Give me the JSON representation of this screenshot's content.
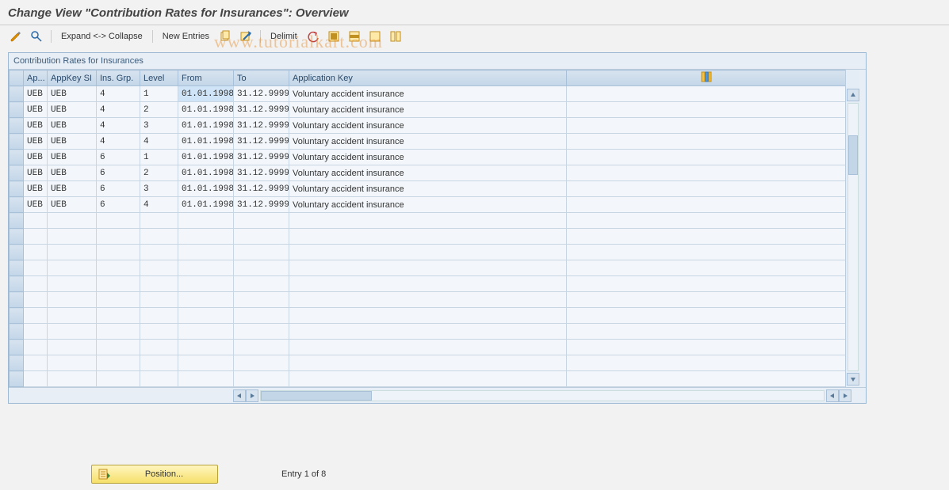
{
  "title": "Change View \"Contribution Rates for Insurances\": Overview",
  "watermark": "www.tutorialkart.com",
  "toolbar": {
    "expand_collapse": "Expand <-> Collapse",
    "new_entries": "New Entries",
    "delimit": "Delimit"
  },
  "frame_caption": "Contribution Rates for Insurances",
  "columns": {
    "ap": "Ap...",
    "appkey": "AppKey SI",
    "insgrp": "Ins. Grp.",
    "level": "Level",
    "from": "From",
    "to": "To",
    "application_key": "Application Key"
  },
  "column_widths": {
    "rowsel": 18,
    "ap": 30,
    "appkey": 62,
    "insgrp": 55,
    "level": 48,
    "from": 70,
    "to": 70,
    "application_key": 350,
    "tail": 352
  },
  "rows": [
    {
      "ap": "UEB",
      "appkey": "UEB",
      "insgrp": "4",
      "level": "1",
      "from": "01.01.1998",
      "to": "31.12.9999",
      "application_key": "Voluntary accident insurance",
      "from_selected": true
    },
    {
      "ap": "UEB",
      "appkey": "UEB",
      "insgrp": "4",
      "level": "2",
      "from": "01.01.1998",
      "to": "31.12.9999",
      "application_key": "Voluntary accident insurance"
    },
    {
      "ap": "UEB",
      "appkey": "UEB",
      "insgrp": "4",
      "level": "3",
      "from": "01.01.1998",
      "to": "31.12.9999",
      "application_key": "Voluntary accident insurance"
    },
    {
      "ap": "UEB",
      "appkey": "UEB",
      "insgrp": "4",
      "level": "4",
      "from": "01.01.1998",
      "to": "31.12.9999",
      "application_key": "Voluntary accident insurance"
    },
    {
      "ap": "UEB",
      "appkey": "UEB",
      "insgrp": "6",
      "level": "1",
      "from": "01.01.1998",
      "to": "31.12.9999",
      "application_key": "Voluntary accident insurance"
    },
    {
      "ap": "UEB",
      "appkey": "UEB",
      "insgrp": "6",
      "level": "2",
      "from": "01.01.1998",
      "to": "31.12.9999",
      "application_key": "Voluntary accident insurance"
    },
    {
      "ap": "UEB",
      "appkey": "UEB",
      "insgrp": "6",
      "level": "3",
      "from": "01.01.1998",
      "to": "31.12.9999",
      "application_key": "Voluntary accident insurance"
    },
    {
      "ap": "UEB",
      "appkey": "UEB",
      "insgrp": "6",
      "level": "4",
      "from": "01.01.1998",
      "to": "31.12.9999",
      "application_key": "Voluntary accident insurance"
    }
  ],
  "empty_rows": 11,
  "footer": {
    "position_label": "Position...",
    "entry_text": "Entry 1 of 8"
  },
  "colors": {
    "header_grad_top": "#d7e3ef",
    "header_grad_bot": "#c3d6e8",
    "cell_bg": "#f3f7fb",
    "frame_border": "#9db8d2",
    "button_grad_top": "#fff6c0",
    "button_grad_bot": "#f6e06a"
  }
}
